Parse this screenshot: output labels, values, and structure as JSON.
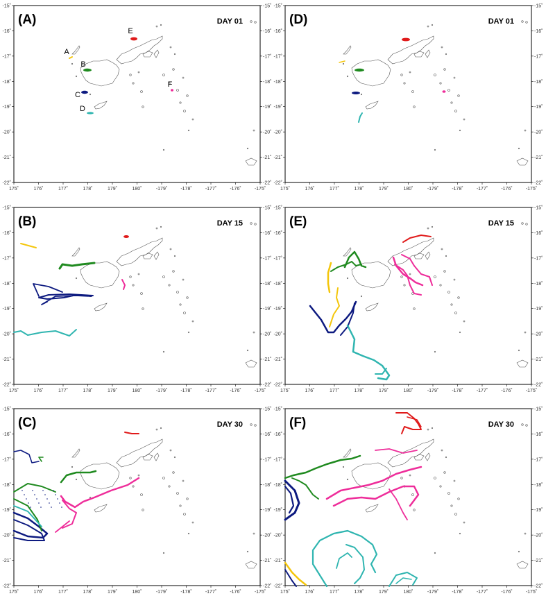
{
  "colors": {
    "A": "#f4c60c",
    "B": "#1f8a1f",
    "C": "#0d1a80",
    "D": "#2fb5b0",
    "E": "#e01a1a",
    "F": "#ee2d9a"
  },
  "axes": {
    "lon_ticks": [
      "175˚",
      "176˚",
      "177˚",
      "178˚",
      "179˚",
      "180˚",
      "-179˚",
      "-178˚",
      "-177˚",
      "-176˚",
      "-175˚"
    ],
    "lat_ticks": [
      "-15˚",
      "-16˚",
      "-17˚",
      "-18˚",
      "-19˚",
      "-20˚",
      "-21˚",
      "-22˚"
    ]
  },
  "panels": [
    {
      "id": "A",
      "label": "(A)",
      "day": "DAY 01",
      "sites": [
        "A",
        "B",
        "C",
        "D",
        "E",
        "F"
      ]
    },
    {
      "id": "B",
      "label": "(B)",
      "day": "DAY 15"
    },
    {
      "id": "C",
      "label": "(C)",
      "day": "DAY 30"
    },
    {
      "id": "D",
      "label": "(D)",
      "day": "DAY 01"
    },
    {
      "id": "E",
      "label": "(E)",
      "day": "DAY 15"
    },
    {
      "id": "F",
      "label": "(F)",
      "day": "DAY 30"
    }
  ]
}
